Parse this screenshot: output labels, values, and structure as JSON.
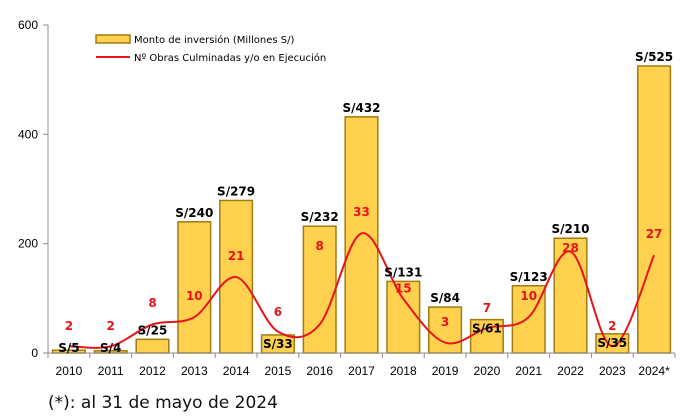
{
  "chart_data": {
    "type": "bar",
    "title": "",
    "xlabel": "",
    "ylabel": "",
    "ylim": [
      0,
      600
    ],
    "yticks": [
      0,
      200,
      400,
      600
    ],
    "grid": false,
    "legend_position": "top-left",
    "categories": [
      "2010",
      "2011",
      "2012",
      "2013",
      "2014",
      "2015",
      "2016",
      "2017",
      "2018",
      "2019",
      "2020",
      "2021",
      "2022",
      "2023",
      "2024*"
    ],
    "series": [
      {
        "name": "Monto de inversión (Millones S/)",
        "type": "bar",
        "axis": "primary",
        "values": [
          5,
          4,
          25,
          240,
          279,
          33,
          232,
          432,
          131,
          84,
          61,
          123,
          210,
          35,
          525
        ],
        "labels": [
          "S/5",
          "S/4",
          "S/25",
          "S/240",
          "S/279",
          "S/33",
          "S/232",
          "S/432",
          "S/131",
          "S/84",
          "S/61",
          "S/123",
          "S/210",
          "S/35",
          "S/525"
        ],
        "color": "#ffd14f",
        "border_color": "#a07c10"
      },
      {
        "name": "Nº Obras Culminadas y/o en Ejecución",
        "type": "line",
        "axis": "secondary",
        "smooth": true,
        "values": [
          2,
          2,
          8,
          10,
          21,
          6,
          8,
          33,
          15,
          3,
          7,
          10,
          28,
          2,
          27
        ],
        "labels": [
          "2",
          "2",
          "8",
          "10",
          "21",
          "6",
          "8",
          "33",
          "15",
          "3",
          "7",
          "10",
          "28",
          "2",
          "27"
        ],
        "color": "#e8141c"
      }
    ],
    "footnote": "(*): al 31 de mayo de 2024"
  }
}
